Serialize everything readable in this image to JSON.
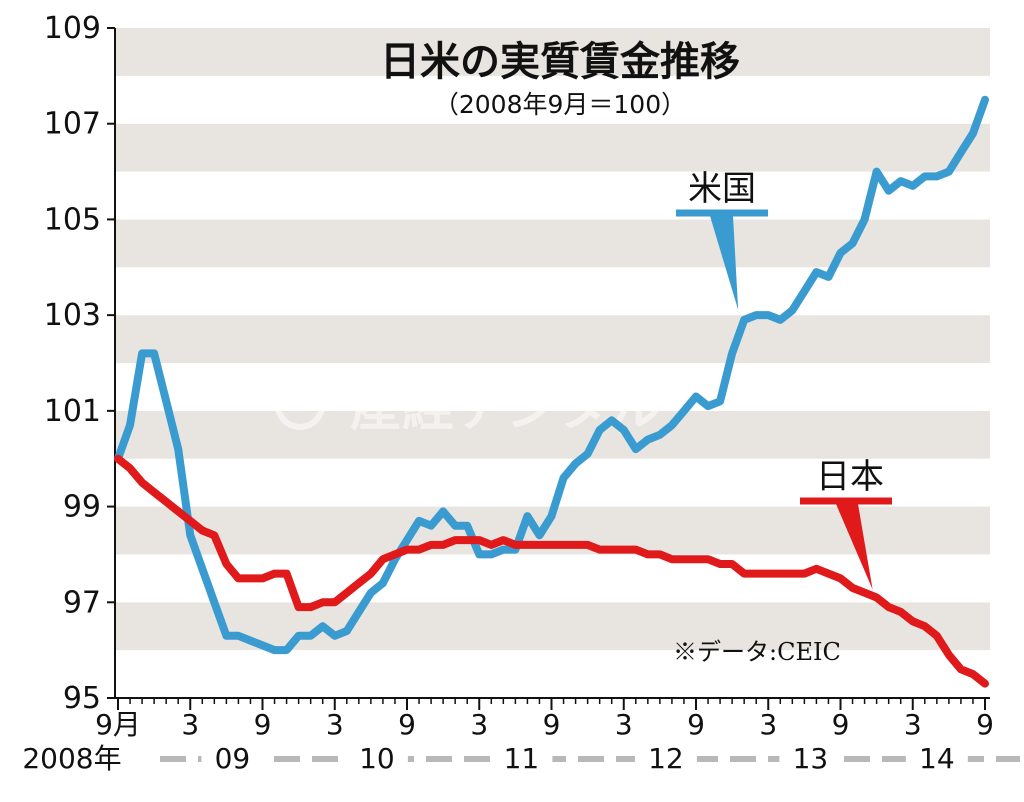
{
  "chart_data": {
    "type": "line",
    "title": "日米の実質賃金推移",
    "subtitle": "（2008年9月＝100）",
    "source": "※データ:CEIC",
    "watermark": "産經デジタル",
    "ylim": [
      95,
      109
    ],
    "yticks": [
      "109",
      "107",
      "105",
      "103",
      "101",
      "99",
      "97",
      "95"
    ],
    "year_labels": [
      "2008年",
      "09",
      "10",
      "11",
      "12",
      "13",
      "14"
    ],
    "x": [
      "2008-09",
      "2008-10",
      "2008-11",
      "2008-12",
      "2009-01",
      "2009-02",
      "2009-03",
      "2009-04",
      "2009-05",
      "2009-06",
      "2009-07",
      "2009-08",
      "2009-09",
      "2009-10",
      "2009-11",
      "2009-12",
      "2010-01",
      "2010-02",
      "2010-03",
      "2010-04",
      "2010-05",
      "2010-06",
      "2010-07",
      "2010-08",
      "2010-09",
      "2010-10",
      "2010-11",
      "2010-12",
      "2011-01",
      "2011-02",
      "2011-03",
      "2011-04",
      "2011-05",
      "2011-06",
      "2011-07",
      "2011-08",
      "2011-09",
      "2011-10",
      "2011-11",
      "2011-12",
      "2012-01",
      "2012-02",
      "2012-03",
      "2012-04",
      "2012-05",
      "2012-06",
      "2012-07",
      "2012-08",
      "2012-09",
      "2012-10",
      "2012-11",
      "2012-12",
      "2013-01",
      "2013-02",
      "2013-03",
      "2013-04",
      "2013-05",
      "2013-06",
      "2013-07",
      "2013-08",
      "2013-09",
      "2013-10",
      "2013-11",
      "2013-12",
      "2014-01",
      "2014-02",
      "2014-03",
      "2014-04",
      "2014-05",
      "2014-06",
      "2014-07",
      "2014-08",
      "2014-09"
    ],
    "xtick_labels": [
      "9月",
      "3",
      "9",
      "3",
      "9",
      "3",
      "9",
      "3",
      "9",
      "3",
      "9",
      "3",
      "9"
    ],
    "series": [
      {
        "name": "米国",
        "color": "#3a9bd0",
        "values": [
          100.0,
          100.7,
          102.2,
          102.2,
          101.2,
          100.2,
          98.4,
          97.7,
          97.0,
          96.3,
          96.3,
          96.2,
          96.1,
          96.0,
          96.0,
          96.3,
          96.3,
          96.5,
          96.3,
          96.4,
          96.8,
          97.2,
          97.4,
          97.9,
          98.3,
          98.7,
          98.6,
          98.9,
          98.6,
          98.6,
          98.0,
          98.0,
          98.1,
          98.1,
          98.8,
          98.4,
          98.8,
          99.6,
          99.9,
          100.1,
          100.6,
          100.8,
          100.6,
          100.2,
          100.4,
          100.5,
          100.7,
          101.0,
          101.3,
          101.1,
          101.2,
          102.2,
          102.9,
          103.0,
          103.0,
          102.9,
          103.1,
          103.5,
          103.9,
          103.8,
          104.3,
          104.5,
          105.0,
          106.0,
          105.6,
          105.8,
          105.7,
          105.9,
          105.9,
          106.0,
          106.4,
          106.8,
          107.5
        ]
      },
      {
        "name": "日本",
        "color": "#e0191b",
        "values": [
          100.0,
          99.8,
          99.5,
          99.3,
          99.1,
          98.9,
          98.7,
          98.5,
          98.4,
          97.8,
          97.5,
          97.5,
          97.5,
          97.6,
          97.6,
          96.9,
          96.9,
          97.0,
          97.0,
          97.2,
          97.4,
          97.6,
          97.9,
          98.0,
          98.1,
          98.1,
          98.2,
          98.2,
          98.3,
          98.3,
          98.3,
          98.2,
          98.3,
          98.2,
          98.2,
          98.2,
          98.2,
          98.2,
          98.2,
          98.2,
          98.1,
          98.1,
          98.1,
          98.1,
          98.0,
          98.0,
          97.9,
          97.9,
          97.9,
          97.9,
          97.8,
          97.8,
          97.6,
          97.6,
          97.6,
          97.6,
          97.6,
          97.6,
          97.7,
          97.6,
          97.5,
          97.3,
          97.2,
          97.1,
          96.9,
          96.8,
          96.6,
          96.5,
          96.3,
          95.9,
          95.6,
          95.5,
          95.3
        ]
      }
    ],
    "legend": "inline labels near lines",
    "grid": "alternating horizontal bands"
  }
}
